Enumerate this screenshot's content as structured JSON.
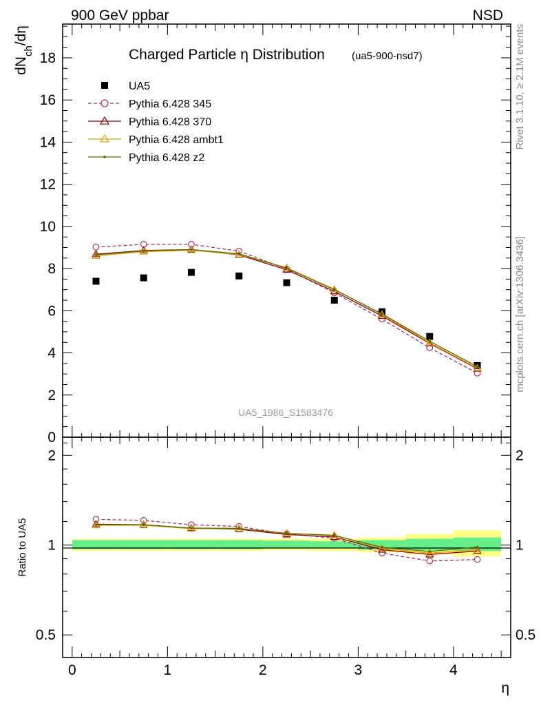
{
  "header": {
    "left": "900 GeV ppbar",
    "right": "NSD"
  },
  "side_labels": {
    "rivet": "Rivet 3.1.10, ≥ 2.1M events",
    "mcplots": "mcplots.cern.ch [arXiv:1306.3436]"
  },
  "chart_data": [
    {
      "type": "scatter",
      "title": "Charged Particle η Distribution",
      "subtitle": "(ua5-900-nsd7)",
      "ylabel": "dN_ch/dη",
      "watermark": "UA5_1986_S1583476",
      "xlim": [
        -0.1,
        4.6
      ],
      "ylim": [
        0,
        19.6
      ],
      "yticks": [
        0,
        2,
        4,
        6,
        8,
        10,
        12,
        14,
        16,
        18
      ],
      "legend_position": "top-left",
      "x": [
        0.25,
        0.75,
        1.25,
        1.75,
        2.25,
        2.75,
        3.25,
        3.75,
        4.25
      ],
      "series": [
        {
          "name": "UA5",
          "color": "#000000",
          "marker": "square",
          "line": "none",
          "values": [
            7.4,
            7.56,
            7.82,
            7.65,
            7.33,
            6.5,
            5.95,
            4.78,
            3.4
          ]
        },
        {
          "name": "Pythia 6.428 345",
          "color": "#b03060",
          "marker": "circle",
          "line": "dashed",
          "values": [
            9.02,
            9.15,
            9.15,
            8.83,
            7.98,
            6.85,
            5.6,
            4.24,
            3.04
          ]
        },
        {
          "name": "Pythia 6.428 370",
          "color": "#8b0000",
          "marker": "triangle",
          "line": "solid",
          "values": [
            8.68,
            8.86,
            8.9,
            8.65,
            7.94,
            6.92,
            5.75,
            4.45,
            3.25
          ]
        },
        {
          "name": "Pythia 6.428 ambt1",
          "color": "#e8a000",
          "marker": "triangle",
          "line": "solid",
          "values": [
            8.6,
            8.8,
            8.87,
            8.67,
            8.04,
            7.02,
            5.82,
            4.48,
            3.28
          ]
        },
        {
          "name": "Pythia 6.428 z2",
          "color": "#556b00",
          "marker": "dot",
          "line": "solid",
          "values": [
            8.65,
            8.84,
            8.9,
            8.7,
            8.02,
            7.0,
            5.85,
            4.55,
            3.35
          ]
        }
      ]
    },
    {
      "type": "line",
      "ylabel": "Ratio to UA5",
      "xlabel": "η",
      "xlim": [
        -0.1,
        4.6
      ],
      "xticks": [
        0,
        1,
        2,
        3,
        4
      ],
      "ylim": [
        0.42,
        2.3
      ],
      "yscale": "log",
      "yticks": [
        0.5,
        1,
        2
      ],
      "bands": {
        "bin_edges": [
          0,
          0.5,
          1.0,
          1.5,
          2.0,
          2.5,
          3.0,
          3.5,
          4.0,
          4.5
        ],
        "inner_color": "#66ee88",
        "outer_color": "#ffff88",
        "inner": [
          [
            0.97,
            1.04
          ],
          [
            0.97,
            1.04
          ],
          [
            0.97,
            1.04
          ],
          [
            0.97,
            1.04
          ],
          [
            0.975,
            1.035
          ],
          [
            0.975,
            1.03
          ],
          [
            0.965,
            1.04
          ],
          [
            0.96,
            1.05
          ],
          [
            0.955,
            1.06
          ]
        ],
        "outer": [
          [
            0.955,
            1.05
          ],
          [
            0.955,
            1.05
          ],
          [
            0.955,
            1.05
          ],
          [
            0.955,
            1.05
          ],
          [
            0.96,
            1.05
          ],
          [
            0.955,
            1.05
          ],
          [
            0.945,
            1.06
          ],
          [
            0.93,
            1.09
          ],
          [
            0.915,
            1.12
          ]
        ]
      },
      "x": [
        0.25,
        0.75,
        1.25,
        1.75,
        2.25,
        2.75,
        3.25,
        3.75,
        4.25
      ],
      "series": [
        {
          "name": "Pythia 6.428 345",
          "color": "#b03060",
          "marker": "circle",
          "line": "dashed",
          "values": [
            1.22,
            1.21,
            1.17,
            1.155,
            1.09,
            1.055,
            0.94,
            0.885,
            0.895
          ]
        },
        {
          "name": "Pythia 6.428 370",
          "color": "#8b0000",
          "marker": "triangle",
          "line": "solid",
          "values": [
            1.175,
            1.17,
            1.14,
            1.13,
            1.085,
            1.065,
            0.965,
            0.93,
            0.955
          ]
        },
        {
          "name": "Pythia 6.428 ambt1",
          "color": "#e8a000",
          "marker": "triangle",
          "line": "solid",
          "values": [
            1.165,
            1.165,
            1.135,
            1.135,
            1.095,
            1.08,
            0.975,
            0.94,
            0.965
          ]
        },
        {
          "name": "Pythia 6.428 z2",
          "color": "#556b00",
          "marker": "dot",
          "line": "solid",
          "values": [
            1.17,
            1.17,
            1.14,
            1.138,
            1.094,
            1.077,
            0.983,
            0.952,
            0.985
          ]
        }
      ]
    }
  ]
}
